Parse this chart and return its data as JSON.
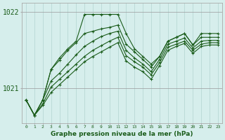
{
  "xlabel": "Graphe pression niveau de la mer (hPa)",
  "background_color": "#d6eeec",
  "line_color": "#1a5c1a",
  "grid_color_v": "#b8d8d5",
  "grid_color_h": "#999999",
  "x_values": [
    0,
    1,
    2,
    3,
    4,
    5,
    6,
    7,
    8,
    9,
    10,
    11,
    12,
    13,
    14,
    15,
    16,
    17,
    18,
    19,
    20,
    21,
    22,
    23
  ],
  "series": [
    [
      1020.85,
      1020.65,
      1020.85,
      1021.25,
      1021.4,
      1021.52,
      1021.62,
      1021.97,
      1021.97,
      1021.97,
      1021.97,
      1021.97,
      1021.72,
      1021.52,
      1021.42,
      1021.32,
      1021.42,
      1021.62,
      1021.67,
      1021.72,
      1021.57,
      1021.72,
      1021.72,
      1021.72
    ],
    [
      1020.85,
      1020.65,
      1020.85,
      1021.25,
      1021.37,
      1021.5,
      1021.6,
      1021.72,
      1021.75,
      1021.78,
      1021.8,
      1021.83,
      1021.58,
      1021.48,
      1021.38,
      1021.28,
      1021.42,
      1021.62,
      1021.67,
      1021.72,
      1021.57,
      1021.67,
      1021.67,
      1021.67
    ],
    [
      1020.85,
      1020.65,
      1020.85,
      1021.1,
      1021.2,
      1021.32,
      1021.44,
      1021.55,
      1021.62,
      1021.68,
      1021.72,
      1021.75,
      1021.5,
      1021.4,
      1021.32,
      1021.22,
      1021.38,
      1021.58,
      1021.62,
      1021.66,
      1021.53,
      1021.62,
      1021.63,
      1021.63
    ],
    [
      1020.85,
      1020.65,
      1020.8,
      1021.02,
      1021.12,
      1021.22,
      1021.32,
      1021.42,
      1021.5,
      1021.56,
      1021.62,
      1021.67,
      1021.43,
      1021.35,
      1021.28,
      1021.18,
      1021.34,
      1021.54,
      1021.58,
      1021.62,
      1021.5,
      1021.58,
      1021.6,
      1021.6
    ],
    [
      1020.85,
      1020.65,
      1020.78,
      1020.95,
      1021.05,
      1021.15,
      1021.25,
      1021.35,
      1021.42,
      1021.48,
      1021.54,
      1021.6,
      1021.36,
      1021.28,
      1021.22,
      1021.12,
      1021.3,
      1021.5,
      1021.55,
      1021.59,
      1021.46,
      1021.55,
      1021.57,
      1021.57
    ]
  ],
  "ylim_min": 1020.55,
  "ylim_max": 1022.12,
  "yticks": [
    1021,
    1022
  ],
  "marker": "+"
}
